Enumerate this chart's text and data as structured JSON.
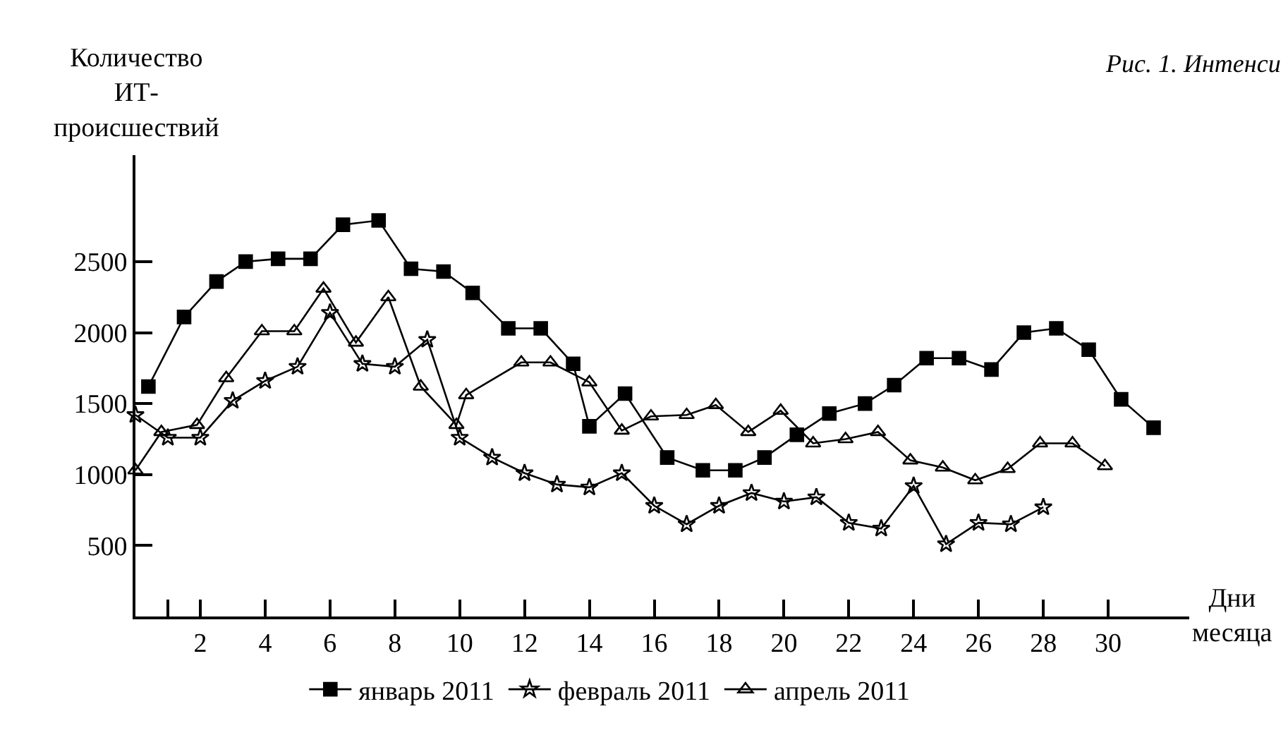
{
  "chart_data": {
    "type": "line",
    "xlabel": "Дни месяца",
    "ylabel": "Количество ИТ-происшествий",
    "annotations": [
      "Рис. 1. Интенси"
    ],
    "xlim": [
      0,
      32.5
    ],
    "xticks": [
      {
        "value": 1,
        "label": null
      },
      2,
      4,
      6,
      8,
      10,
      12,
      14,
      16,
      18,
      20,
      22,
      24,
      26,
      28,
      30
    ],
    "ylim": [
      0,
      3250
    ],
    "yticks": [
      500,
      1000,
      1500,
      2000,
      2500
    ],
    "legend": "bottom",
    "line_style": "solid",
    "series": [
      {
        "name": "январь 2011",
        "color": "#000000",
        "marker": "square",
        "x": [
          0.4,
          1.5,
          2.5,
          3.4,
          4.4,
          5.4,
          6.4,
          7.5,
          8.5,
          9.5,
          10.4,
          11.5,
          12.5,
          13.5,
          14.0,
          15.1,
          16.4,
          17.5,
          18.5,
          19.4,
          20.4,
          21.4,
          22.5,
          23.4,
          24.4,
          25.4,
          26.4,
          27.4,
          28.4,
          29.4,
          30.4,
          31.4
        ],
        "values": [
          1620,
          2110,
          2360,
          2500,
          2520,
          2520,
          2760,
          2790,
          2450,
          2430,
          2280,
          2030,
          2030,
          1780,
          1340,
          1570,
          1120,
          1030,
          1030,
          1120,
          1280,
          1430,
          1500,
          1630,
          1820,
          1820,
          1740,
          2000,
          2030,
          1880,
          1530,
          1330
        ]
      },
      {
        "name": "февраль 2011",
        "color": "#000000",
        "marker": "star",
        "x": [
          0,
          1,
          2,
          3,
          4,
          5,
          6,
          7,
          8,
          9,
          10,
          11,
          12,
          13,
          14,
          15,
          16,
          17,
          18,
          19,
          20,
          21,
          22,
          23,
          24,
          25,
          26,
          27,
          28
        ],
        "values": [
          1420,
          1260,
          1260,
          1520,
          1660,
          1760,
          2140,
          1780,
          1760,
          1950,
          1260,
          1120,
          1010,
          930,
          910,
          1010,
          780,
          650,
          780,
          870,
          810,
          840,
          660,
          620,
          920,
          510,
          660,
          650,
          770
        ]
      },
      {
        "name": "апрель 2011",
        "color": "#000000",
        "marker": "triangle",
        "x": [
          0,
          0.8,
          1.9,
          2.8,
          3.9,
          4.9,
          5.8,
          6.8,
          7.8,
          8.8,
          9.9,
          10.2,
          11.9,
          12.8,
          14.0,
          15.0,
          15.9,
          17.0,
          17.9,
          18.9,
          19.9,
          20.9,
          21.9,
          22.9,
          23.9,
          24.9,
          25.9,
          26.9,
          27.9,
          28.9,
          29.9
        ],
        "values": [
          1030,
          1300,
          1350,
          1680,
          2010,
          2010,
          2310,
          1930,
          2250,
          1620,
          1350,
          1560,
          1790,
          1790,
          1650,
          1310,
          1410,
          1420,
          1490,
          1300,
          1450,
          1220,
          1250,
          1300,
          1100,
          1050,
          960,
          1040,
          1220,
          1220,
          1060
        ]
      }
    ]
  }
}
